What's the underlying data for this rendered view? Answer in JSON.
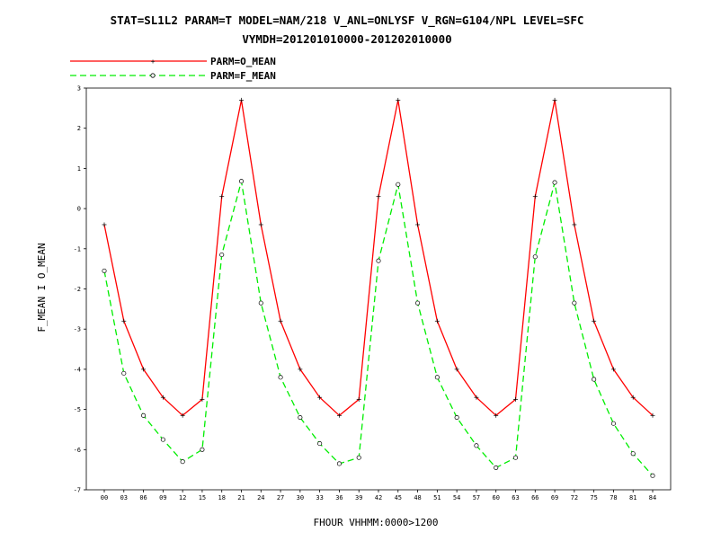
{
  "chart_data": {
    "type": "line",
    "title": "STAT=SL1L2 PARAM=T MODEL=NAM/218 V_ANL=ONLYSF V_RGN=G104/NPL LEVEL=SFC",
    "subtitle": "VYMDH=201201010000-201202010000",
    "xlabel": "FHOUR VHHMM:0000>1200",
    "ylabel": "F_MEAN I O_MEAN",
    "ylim": [
      -7,
      3
    ],
    "yticks": [
      "3",
      "2",
      "1",
      "0",
      "-1",
      "-2",
      "-3",
      "-4",
      "-5",
      "-6",
      "-7"
    ],
    "categories": [
      "00",
      "03",
      "06",
      "09",
      "12",
      "15",
      "18",
      "21",
      "24",
      "27",
      "30",
      "33",
      "36",
      "39",
      "42",
      "45",
      "48",
      "51",
      "54",
      "57",
      "60",
      "63",
      "66",
      "69",
      "72",
      "75",
      "78",
      "81",
      "84"
    ],
    "legend_position": "top-left",
    "series": [
      {
        "name": "PARM=O_MEAN",
        "color": "#ff0000",
        "style": "solid",
        "marker": "plus",
        "values": [
          -0.4,
          -2.8,
          -4.0,
          -4.7,
          -5.15,
          -4.75,
          0.3,
          2.7,
          -0.4,
          -2.8,
          -4.0,
          -4.7,
          -5.15,
          -4.75,
          0.3,
          2.7,
          -0.4,
          -2.8,
          -4.0,
          -4.7,
          -5.15,
          -4.75,
          0.3,
          2.7,
          -0.4,
          -2.8,
          -4.0,
          -4.7,
          -5.15
        ]
      },
      {
        "name": "PARM=F_MEAN",
        "color": "#00ee00",
        "style": "dashed",
        "marker": "circle",
        "values": [
          -1.55,
          -4.1,
          -5.15,
          -5.75,
          -6.3,
          -6.0,
          -1.15,
          0.68,
          -2.35,
          -4.2,
          -5.2,
          -5.85,
          -6.35,
          -6.2,
          -1.3,
          0.6,
          -2.35,
          -4.2,
          -5.2,
          -5.9,
          -6.45,
          -6.2,
          -1.2,
          0.65,
          -2.35,
          -4.25,
          -5.35,
          -6.1,
          -6.65
        ]
      }
    ]
  }
}
